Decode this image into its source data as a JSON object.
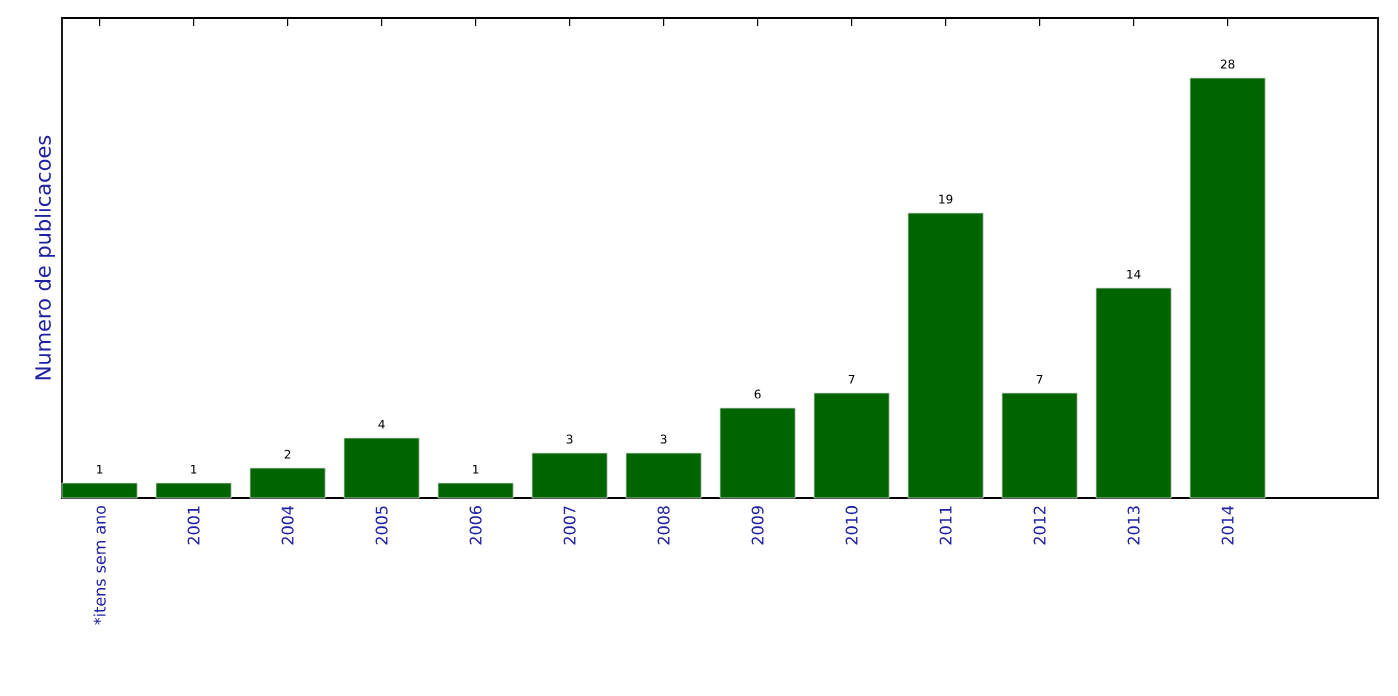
{
  "chart_data": {
    "type": "bar",
    "ylabel": "Numero de publicacoes",
    "categories": [
      "*itens sem ano",
      "2001",
      "2004",
      "2005",
      "2006",
      "2007",
      "2008",
      "2009",
      "2010",
      "2011",
      "2012",
      "2013",
      "2014"
    ],
    "values": [
      1,
      1,
      2,
      4,
      1,
      3,
      3,
      6,
      7,
      19,
      7,
      14,
      28
    ],
    "color": "#006400",
    "ylim": [
      0,
      32
    ],
    "tick_labels": "x",
    "data_labels": true
  }
}
